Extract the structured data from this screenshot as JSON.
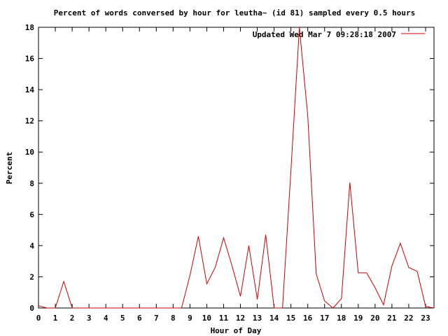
{
  "chart_data": {
    "type": "line",
    "title": "Percent of words conversed by hour for leutha~ (id 81) sampled every 0.5 hours",
    "xlabel": "Hour of Day",
    "ylabel": "Percent",
    "xlim": [
      0,
      23.5
    ],
    "ylim": [
      0,
      18
    ],
    "xticks": [
      0,
      1,
      2,
      3,
      4,
      5,
      6,
      7,
      8,
      9,
      10,
      11,
      12,
      13,
      14,
      15,
      16,
      17,
      18,
      19,
      20,
      21,
      22,
      23
    ],
    "yticks": [
      0,
      2,
      4,
      6,
      8,
      10,
      12,
      14,
      16,
      18
    ],
    "grid": false,
    "legend_position": "top-right",
    "series": [
      {
        "name": "Updated Wed Mar  7 09:28:18 2007",
        "color": "#cc0000",
        "x": [
          0,
          0.5,
          1,
          1.5,
          2,
          2.5,
          3,
          3.5,
          4,
          4.5,
          5,
          5.5,
          6,
          6.5,
          7,
          7.5,
          8,
          8.5,
          9,
          9.5,
          10,
          10.5,
          11,
          11.5,
          12,
          12.5,
          13,
          13.5,
          14,
          14.5,
          15,
          15.5,
          16,
          16.5,
          17,
          17.5,
          18,
          18.5,
          19,
          19.5,
          20,
          20.5,
          21,
          21.5,
          22,
          22.5,
          23,
          23.5
        ],
        "values": [
          0.15,
          0,
          0,
          1.7,
          0,
          0,
          0,
          0,
          0,
          0,
          0,
          0,
          0,
          0,
          0,
          0,
          0,
          0,
          2.1,
          4.6,
          1.55,
          2.6,
          4.5,
          2.7,
          0.75,
          4.0,
          0.55,
          4.7,
          0,
          0,
          8.8,
          18.0,
          12.3,
          2.2,
          0.45,
          0,
          0.6,
          8.05,
          2.25,
          2.25,
          1.3,
          0.2,
          2.7,
          4.15,
          2.6,
          2.35,
          0.1,
          0
        ]
      }
    ]
  }
}
